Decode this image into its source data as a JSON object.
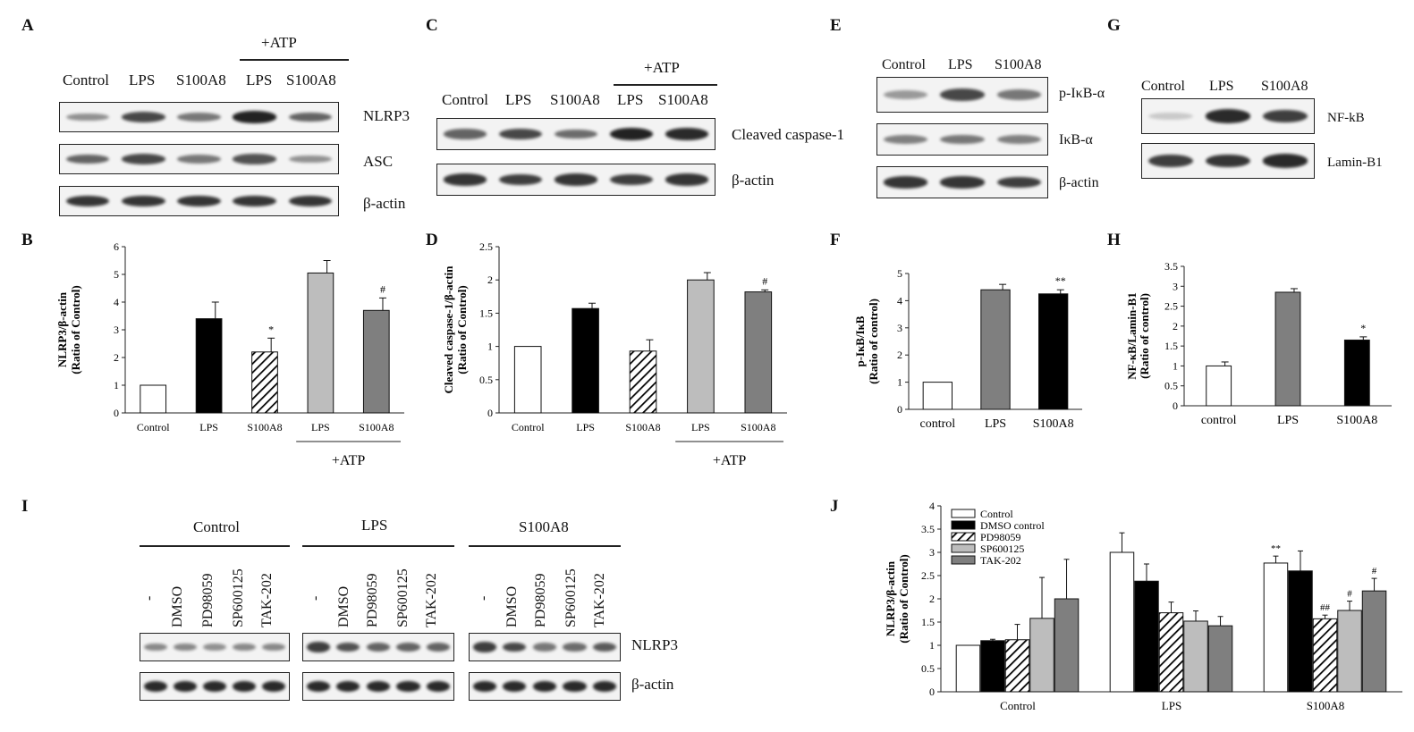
{
  "panels": {
    "A": {
      "label": "A",
      "atp_label": "+ATP",
      "lanes": [
        "Control",
        "LPS",
        "S100A8",
        "LPS",
        "S100A8"
      ],
      "rows": [
        {
          "name": "NLRP3",
          "intensity": [
            0.35,
            0.75,
            0.5,
            0.95,
            0.6
          ]
        },
        {
          "name": "ASC",
          "intensity": [
            0.6,
            0.75,
            0.5,
            0.7,
            0.35
          ]
        },
        {
          "name": "β-actin",
          "intensity": [
            0.85,
            0.85,
            0.85,
            0.85,
            0.85
          ]
        }
      ]
    },
    "C": {
      "label": "C",
      "atp_label": "+ATP",
      "lanes": [
        "Control",
        "LPS",
        "S100A8",
        "LPS",
        "S100A8"
      ],
      "rows": [
        {
          "name": "Cleaved caspase-1",
          "intensity": [
            0.6,
            0.75,
            0.55,
            0.95,
            0.9
          ]
        },
        {
          "name": "β-actin",
          "intensity": [
            0.85,
            0.8,
            0.85,
            0.8,
            0.85
          ]
        }
      ]
    },
    "E": {
      "label": "E",
      "lanes": [
        "Control",
        "LPS",
        "S100A8"
      ],
      "rows": [
        {
          "name": "p-IκB-α",
          "intensity": [
            0.3,
            0.75,
            0.5
          ]
        },
        {
          "name": "IκB-α",
          "intensity": [
            0.45,
            0.5,
            0.45
          ]
        },
        {
          "name": "β-actin",
          "intensity": [
            0.85,
            0.85,
            0.8
          ]
        }
      ]
    },
    "G": {
      "label": "G",
      "lanes": [
        "Control",
        "LPS",
        "S100A8"
      ],
      "rows": [
        {
          "name": "NF-kB",
          "intensity": [
            0.05,
            0.9,
            0.8
          ]
        },
        {
          "name": "Lamin-B1",
          "intensity": [
            0.8,
            0.85,
            0.9
          ]
        }
      ]
    },
    "I": {
      "label": "I",
      "groups": [
        "Control",
        "LPS",
        "S100A8"
      ],
      "lanes": [
        "-",
        "DMSO",
        "PD98059",
        "SP600125",
        "TAK-202"
      ],
      "rows": [
        {
          "name": "NLRP3",
          "intensity": [
            [
              0.4,
              0.4,
              0.35,
              0.4,
              0.4
            ],
            [
              0.8,
              0.7,
              0.6,
              0.6,
              0.6
            ],
            [
              0.8,
              0.75,
              0.5,
              0.55,
              0.65
            ]
          ]
        },
        {
          "name": "β-actin",
          "intensity": [
            [
              0.9,
              0.9,
              0.9,
              0.9,
              0.9
            ],
            [
              0.9,
              0.9,
              0.9,
              0.9,
              0.9
            ],
            [
              0.9,
              0.9,
              0.9,
              0.9,
              0.9
            ]
          ]
        }
      ]
    },
    "B": {
      "label": "B"
    },
    "D": {
      "label": "D"
    },
    "F": {
      "label": "F"
    },
    "H": {
      "label": "H"
    },
    "J": {
      "label": "J"
    }
  },
  "chart_data": [
    {
      "id": "B",
      "type": "bar",
      "ylabel": "NLRP3/β-actin\n(Ratio of Control)",
      "categories": [
        "Control",
        "LPS",
        "S100A8",
        "LPS",
        "S100A8"
      ],
      "values": [
        1.0,
        3.4,
        2.2,
        5.05,
        3.7
      ],
      "errors": [
        0,
        0.6,
        0.5,
        0.45,
        0.45
      ],
      "annotations": [
        "",
        "",
        "*",
        "",
        "#"
      ],
      "fills": [
        "white",
        "black",
        "hatch",
        "#bdbdbd",
        "#7f7f7f"
      ],
      "ylim": [
        0,
        6
      ],
      "yticks": [
        0,
        1,
        2,
        3,
        4,
        5,
        6
      ],
      "group_label": "+ATP",
      "group_span": [
        3,
        4
      ]
    },
    {
      "id": "D",
      "type": "bar",
      "ylabel": "Cleaved caspase-1/β-actin\n(Ratio of Control)",
      "categories": [
        "Control",
        "LPS",
        "S100A8",
        "LPS",
        "S100A8"
      ],
      "values": [
        1.0,
        1.57,
        0.93,
        2.0,
        1.82
      ],
      "errors": [
        0,
        0.08,
        0.17,
        0.11,
        0.03
      ],
      "annotations": [
        "",
        "",
        "",
        "",
        "#"
      ],
      "fills": [
        "white",
        "black",
        "hatch",
        "#bdbdbd",
        "#7f7f7f"
      ],
      "ylim": [
        0,
        2.5
      ],
      "yticks": [
        0,
        0.5,
        1,
        1.5,
        2,
        2.5
      ],
      "group_label": "+ATP",
      "group_span": [
        3,
        4
      ]
    },
    {
      "id": "F",
      "type": "bar",
      "ylabel": "p-IκB/IκB\n(Ratio of control)",
      "categories": [
        "control",
        "LPS",
        "S100A8"
      ],
      "values": [
        1.0,
        4.4,
        4.25
      ],
      "errors": [
        0,
        0.2,
        0.15
      ],
      "annotations": [
        "",
        "",
        "**"
      ],
      "fills": [
        "white",
        "#7f7f7f",
        "black"
      ],
      "ylim": [
        0,
        5
      ],
      "yticks": [
        0,
        1,
        2,
        3,
        4,
        5
      ]
    },
    {
      "id": "H",
      "type": "bar",
      "ylabel": "NF-κB/Lamin-B1\n(Ratio of control)",
      "categories": [
        "control",
        "LPS",
        "S100A8"
      ],
      "values": [
        1.0,
        2.85,
        1.65
      ],
      "errors": [
        0.1,
        0.09,
        0.08
      ],
      "annotations": [
        "",
        "",
        "*"
      ],
      "fills": [
        "white",
        "#7f7f7f",
        "black"
      ],
      "ylim": [
        0,
        3.5
      ],
      "yticks": [
        0,
        0.5,
        1,
        1.5,
        2,
        2.5,
        3,
        3.5
      ]
    },
    {
      "id": "J",
      "type": "bar",
      "ylabel": "NLRP3/β-actin\n(Ratio of Control)",
      "categories": [
        "Control",
        "LPS",
        "S100A8"
      ],
      "series": [
        {
          "name": "Control",
          "fill": "white",
          "values": [
            1.0,
            3.0,
            2.77
          ],
          "errors": [
            0,
            0.42,
            0.15
          ],
          "annotations": [
            "",
            "",
            "**"
          ]
        },
        {
          "name": "DMSO control",
          "fill": "black",
          "values": [
            1.1,
            2.38,
            2.6
          ],
          "errors": [
            0.03,
            0.37,
            0.43
          ],
          "annotations": [
            "",
            "",
            ""
          ]
        },
        {
          "name": "PD98059",
          "fill": "hatch",
          "values": [
            1.12,
            1.7,
            1.57
          ],
          "errors": [
            0.33,
            0.23,
            0.08
          ],
          "annotations": [
            "",
            "",
            "##"
          ]
        },
        {
          "name": "SP600125",
          "fill": "#bdbdbd",
          "values": [
            1.58,
            1.52,
            1.75
          ],
          "errors": [
            0.88,
            0.22,
            0.2
          ],
          "annotations": [
            "",
            "",
            "#"
          ]
        },
        {
          "name": "TAK-202",
          "fill": "#7f7f7f",
          "values": [
            2.0,
            1.42,
            2.17
          ],
          "errors": [
            0.85,
            0.2,
            0.27
          ],
          "annotations": [
            "",
            "",
            "#"
          ]
        }
      ],
      "ylim": [
        0,
        4
      ],
      "yticks": [
        0,
        0.5,
        1,
        1.5,
        2,
        2.5,
        3,
        3.5,
        4
      ],
      "legend": "top-left"
    }
  ]
}
